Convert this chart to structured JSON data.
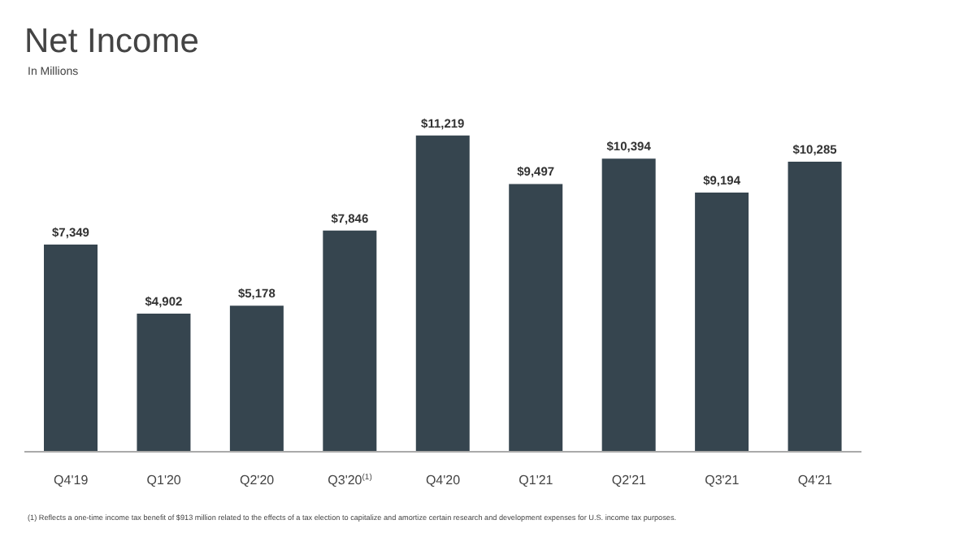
{
  "chart_data": {
    "type": "bar",
    "title": "Net Income",
    "subtitle": "In Millions",
    "categories": [
      "Q4'19",
      "Q1'20",
      "Q2'20",
      "Q3'20$^{(1)}$",
      "Q4'20",
      "Q1'21",
      "Q2'21",
      "Q3'21",
      "Q4'21"
    ],
    "values": [
      7349,
      4902,
      5178,
      7846,
      11219,
      9497,
      10394,
      9194,
      10285
    ],
    "value_labels": [
      "$7,349",
      "$4,902",
      "$5,178",
      "$7,846",
      "$11,219",
      "$9,497",
      "$10,394",
      "$9,194",
      "$10,285"
    ],
    "color": "#36454f",
    "grid": false,
    "legend": false,
    "annotations": [
      "(1) Reflects a one-time income tax benefit of $913 million related to the effects of a tax election to capitalize and amortize certain research and development expenses for U.S. income tax purposes."
    ]
  }
}
